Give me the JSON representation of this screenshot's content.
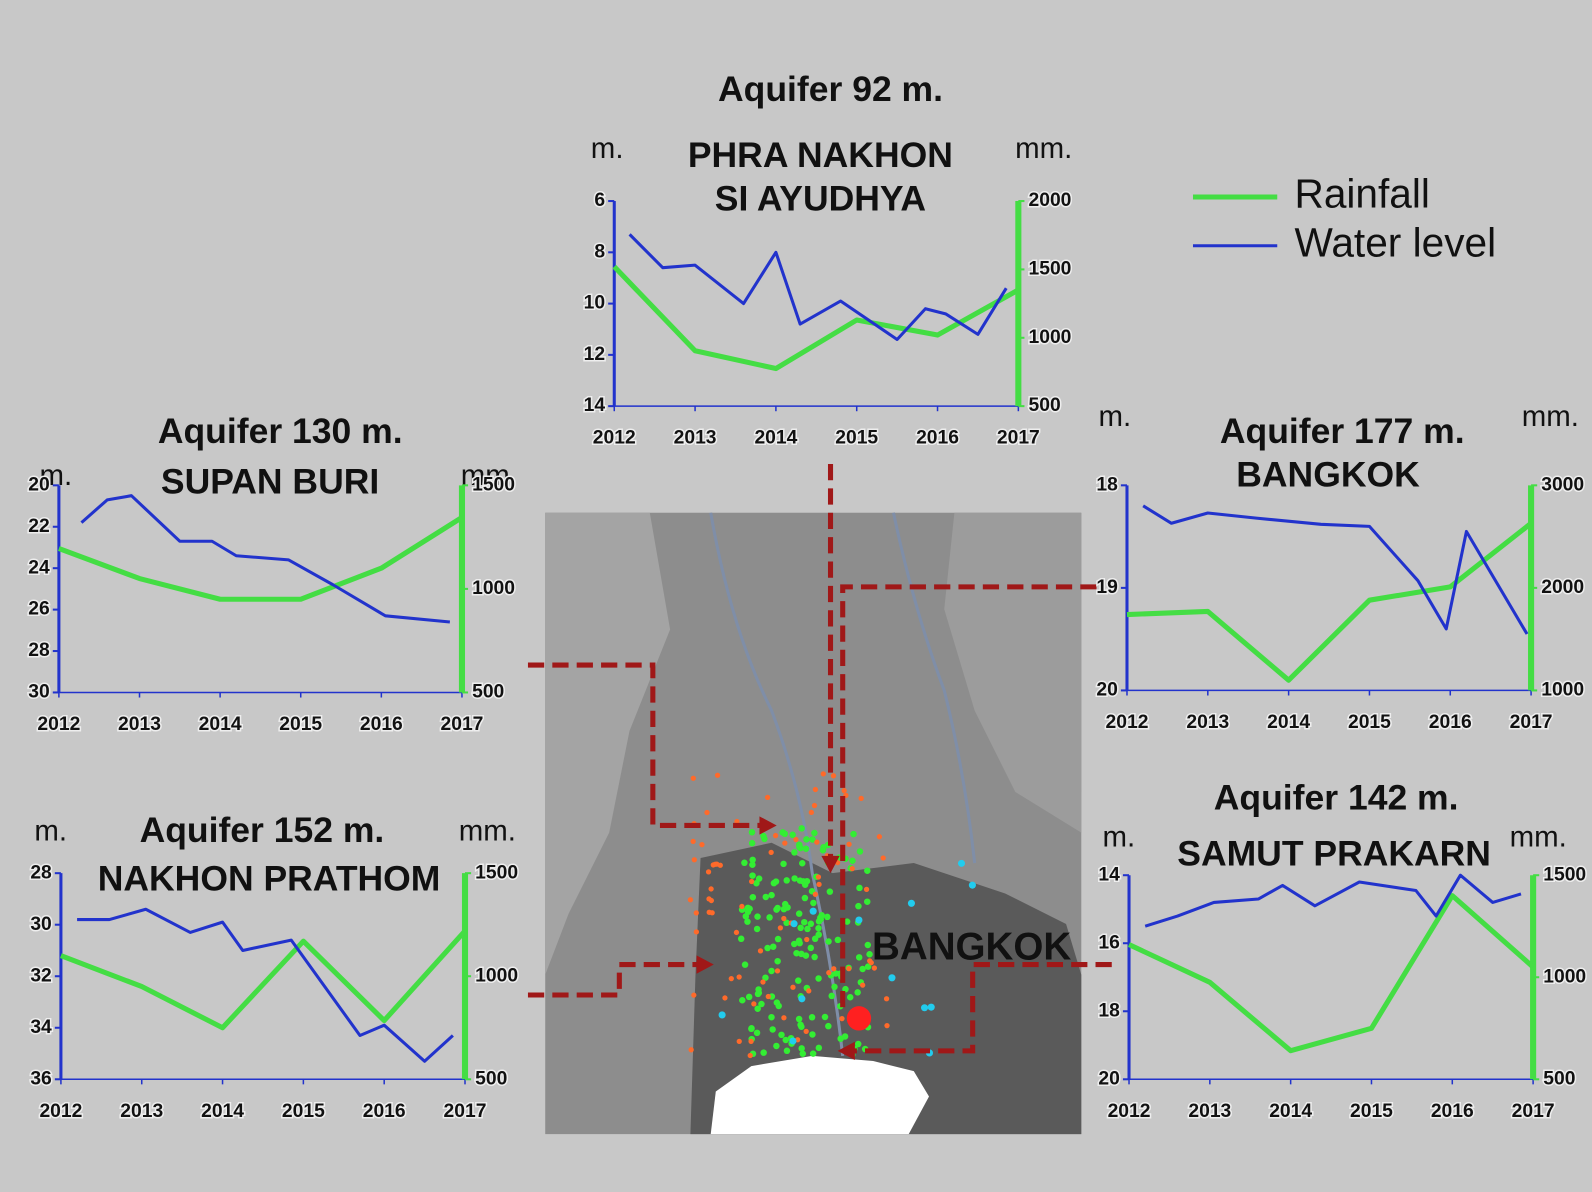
{
  "chart_data": [
    {
      "type": "line",
      "title": "Aquifer 92 m.",
      "subtitle": [
        "PHRA NAKHON",
        "SI AYUDHYA"
      ],
      "ylabel": "m.",
      "y2label": "mm.",
      "xlim": [
        2012,
        2017
      ],
      "xticks": [
        2012,
        2013,
        2014,
        2015,
        2016,
        2017
      ],
      "ylim": [
        14,
        6
      ],
      "yticks": [
        6,
        8,
        10,
        12,
        14
      ],
      "y2lim": [
        500,
        2000
      ],
      "y2ticks": [
        500,
        1000,
        1500,
        2000
      ],
      "series": [
        {
          "name": "Rainfall",
          "color": "#44dd44",
          "axis": "y2",
          "x": [
            2012,
            2013,
            2014,
            2015,
            2016,
            2017
          ],
          "values": [
            1520,
            905,
            775,
            1130,
            1020,
            1350
          ]
        },
        {
          "name": "Water level",
          "color": "#2233cc",
          "x": [
            2012.19,
            2012.6,
            2013.0,
            2013.6,
            2014.0,
            2014.3,
            2014.8,
            2015.5,
            2015.85,
            2016.1,
            2016.5,
            2016.85
          ],
          "values": [
            7.3,
            8.6,
            8.5,
            10.0,
            8.0,
            10.8,
            9.9,
            11.4,
            10.2,
            10.4,
            11.2,
            9.4
          ]
        }
      ]
    },
    {
      "type": "line",
      "title": "Aquifer 130 m.",
      "subtitle": [
        "SUPAN BURI"
      ],
      "ylabel": "m.",
      "y2label": "mm.",
      "xlim": [
        2012,
        2017
      ],
      "xticks": [
        2012,
        2013,
        2014,
        2015,
        2016,
        2017
      ],
      "ylim": [
        30,
        20
      ],
      "yticks": [
        20,
        22,
        24,
        26,
        28,
        30
      ],
      "y2lim": [
        500,
        1500
      ],
      "y2ticks": [
        500,
        1000,
        1500
      ],
      "series": [
        {
          "color": "#44dd44",
          "axis": "y2",
          "x": [
            2012,
            2013,
            2014,
            2015,
            2016,
            2017
          ],
          "values": [
            1195,
            1050,
            950,
            950,
            1100,
            1345
          ]
        },
        {
          "color": "#2233cc",
          "x": [
            2012.28,
            2012.6,
            2012.9,
            2013.5,
            2013.9,
            2014.2,
            2014.85,
            2015.4,
            2016.05,
            2016.85
          ],
          "values": [
            21.8,
            20.7,
            20.5,
            22.7,
            22.7,
            23.4,
            23.6,
            24.8,
            26.3,
            26.6
          ]
        }
      ]
    },
    {
      "type": "line",
      "title": "Aquifer 152 m.",
      "subtitle": [
        "NAKHON PRATHOM"
      ],
      "ylabel": "m.",
      "y2label": "mm.",
      "xlim": [
        2012,
        2017
      ],
      "xticks": [
        2012,
        2013,
        2014,
        2015,
        2016,
        2017
      ],
      "ylim": [
        36,
        28
      ],
      "yticks": [
        28,
        30,
        32,
        34,
        36
      ],
      "y2lim": [
        500,
        1500
      ],
      "y2ticks": [
        500,
        1000,
        1500
      ],
      "series": [
        {
          "color": "#44dd44",
          "axis": "y2",
          "x": [
            2012,
            2013,
            2014,
            2015,
            2016,
            2017
          ],
          "values": [
            1100,
            950,
            750,
            1170,
            785,
            1220
          ]
        },
        {
          "color": "#2233cc",
          "x": [
            2012.2,
            2012.6,
            2013.05,
            2013.6,
            2014.0,
            2014.25,
            2014.85,
            2015.7,
            2016.0,
            2016.5,
            2016.85
          ],
          "values": [
            29.8,
            29.8,
            29.4,
            30.3,
            29.9,
            31.0,
            30.6,
            34.3,
            33.9,
            35.3,
            34.3
          ]
        }
      ]
    },
    {
      "type": "line",
      "title": "Aquifer 177 m.",
      "subtitle": [
        "BANGKOK"
      ],
      "ylabel": "m.",
      "y2label": "mm.",
      "xlim": [
        2012,
        2017
      ],
      "xticks": [
        2012,
        2013,
        2014,
        2015,
        2016,
        2017
      ],
      "ylim": [
        20,
        18
      ],
      "yticks": [
        18,
        19,
        20
      ],
      "y2lim": [
        1000,
        3000
      ],
      "y2ticks": [
        1000,
        2000,
        3000
      ],
      "series": [
        {
          "color": "#44dd44",
          "axis": "y2",
          "x": [
            2012,
            2013,
            2014,
            2015,
            2016,
            2017
          ],
          "values": [
            1740,
            1770,
            1100,
            1880,
            2010,
            2630
          ]
        },
        {
          "color": "#2233cc",
          "x": [
            2012.2,
            2012.55,
            2013.0,
            2013.6,
            2014.4,
            2015.0,
            2015.6,
            2015.95,
            2016.2,
            2016.95
          ],
          "values": [
            18.2,
            18.37,
            18.27,
            18.32,
            18.38,
            18.4,
            18.93,
            19.4,
            18.45,
            19.45
          ]
        }
      ]
    },
    {
      "type": "line",
      "title": "Aquifer 142 m.",
      "subtitle": [
        "SAMUT PRAKARN"
      ],
      "ylabel": "m.",
      "y2label": "mm.",
      "xlim": [
        2012,
        2017
      ],
      "xticks": [
        2012,
        2013,
        2014,
        2015,
        2016,
        2017
      ],
      "ylim": [
        20,
        14
      ],
      "yticks": [
        14,
        16,
        18,
        20
      ],
      "y2lim": [
        500,
        1500
      ],
      "y2ticks": [
        500,
        1000,
        1500
      ],
      "series": [
        {
          "color": "#44dd44",
          "axis": "y2",
          "x": [
            2012,
            2013,
            2014,
            2015,
            2016,
            2017
          ],
          "values": [
            1160,
            975,
            640,
            750,
            1400,
            1050
          ]
        },
        {
          "color": "#2233cc",
          "x": [
            2012.2,
            2012.6,
            2013.05,
            2013.6,
            2013.9,
            2014.3,
            2014.85,
            2015.55,
            2015.8,
            2016.1,
            2016.5,
            2016.85
          ],
          "values": [
            15.5,
            15.2,
            14.8,
            14.7,
            14.3,
            14.9,
            14.2,
            14.45,
            15.2,
            14.0,
            14.8,
            14.55
          ]
        }
      ]
    }
  ],
  "map": {
    "label": "BANGKOK"
  }
}
